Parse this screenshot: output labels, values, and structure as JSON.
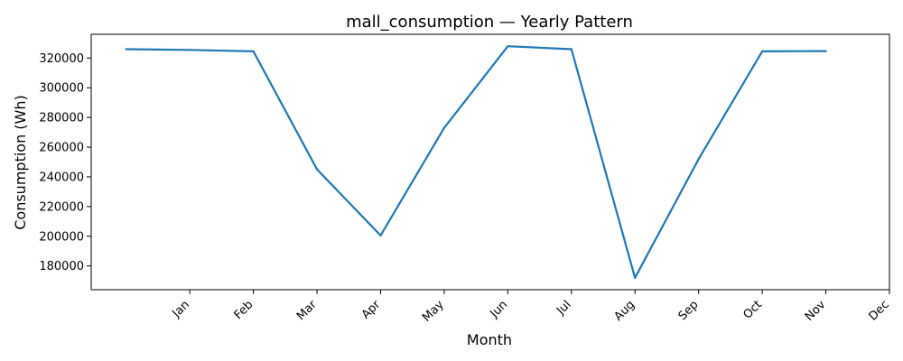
{
  "chart_data": {
    "type": "line",
    "title": "mall_consumption — Yearly Pattern",
    "xlabel": "Month",
    "ylabel": "Consumption (Wh)",
    "x_ticks": [
      {
        "pos": 1,
        "label": "Jan"
      },
      {
        "pos": 2,
        "label": "Feb"
      },
      {
        "pos": 3,
        "label": "Mar"
      },
      {
        "pos": 4,
        "label": "Apr"
      },
      {
        "pos": 5,
        "label": "May"
      },
      {
        "pos": 6,
        "label": "Jun"
      },
      {
        "pos": 7,
        "label": "Jul"
      },
      {
        "pos": 8,
        "label": "Aug"
      },
      {
        "pos": 9,
        "label": "Sep"
      },
      {
        "pos": 10,
        "label": "Oct"
      },
      {
        "pos": 11,
        "label": "Nov"
      },
      {
        "pos": 12,
        "label": "Dec"
      }
    ],
    "y_ticks": [
      180000,
      200000,
      220000,
      240000,
      260000,
      280000,
      300000,
      320000
    ],
    "xlim": [
      -0.55,
      12
    ],
    "ylim": [
      164000,
      336000
    ],
    "grid": false,
    "series": [
      {
        "name": "mall_consumption",
        "color": "#1f77b4",
        "x": [
          0,
          1,
          2,
          3,
          4,
          5,
          6,
          7,
          8,
          9,
          10,
          11
        ],
        "values": [
          326000,
          325500,
          324500,
          245000,
          200500,
          273000,
          328000,
          326000,
          172000,
          252000,
          324500,
          324700
        ]
      }
    ]
  }
}
